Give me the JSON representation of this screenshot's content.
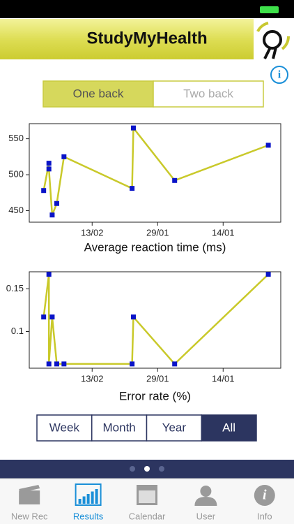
{
  "header": {
    "title": "StudyMyHealth"
  },
  "toggle": {
    "options": [
      "One back",
      "Two back"
    ],
    "selected": 0
  },
  "chart_data": [
    {
      "type": "line",
      "xlabel": "Average reaction time (ms)",
      "color": "#c9c92a",
      "marker_color": "#0a14c8",
      "x": [
        -0.74,
        -0.66,
        -0.66,
        -0.61,
        -0.54,
        -0.43,
        0.61,
        0.63,
        1.26,
        2.69
      ],
      "values": [
        478,
        516,
        508,
        444,
        460,
        525,
        481,
        565,
        492,
        541
      ],
      "xlim": [
        -0.96,
        2.88
      ],
      "xticks": [
        {
          "value": 0,
          "label": "13/02"
        },
        {
          "value": 1,
          "label": "29/01"
        },
        {
          "value": 2,
          "label": "14/01"
        }
      ],
      "ylim": [
        434,
        571
      ],
      "yticks": [
        450,
        500,
        550
      ]
    },
    {
      "type": "line",
      "xlabel": "Error rate (%)",
      "color": "#c9c92a",
      "marker_color": "#0a14c8",
      "x": [
        -0.74,
        -0.66,
        -0.66,
        -0.61,
        -0.54,
        -0.43,
        0.61,
        0.63,
        1.26,
        2.69
      ],
      "values": [
        0.117,
        0.167,
        0.062,
        0.117,
        0.062,
        0.062,
        0.062,
        0.117,
        0.062,
        0.167
      ],
      "xlim": [
        -0.96,
        2.88
      ],
      "xticks": [
        {
          "value": 0,
          "label": "13/02"
        },
        {
          "value": 1,
          "label": "29/01"
        },
        {
          "value": 2,
          "label": "14/01"
        }
      ],
      "ylim": [
        0.057,
        0.17
      ],
      "yticks": [
        0.1,
        0.15
      ]
    }
  ],
  "range": {
    "options": [
      "Week",
      "Month",
      "Year",
      "All"
    ],
    "selected": 3
  },
  "tabs": [
    "New Rec",
    "Results",
    "Calendar",
    "User",
    "Info"
  ],
  "active_tab": 1
}
